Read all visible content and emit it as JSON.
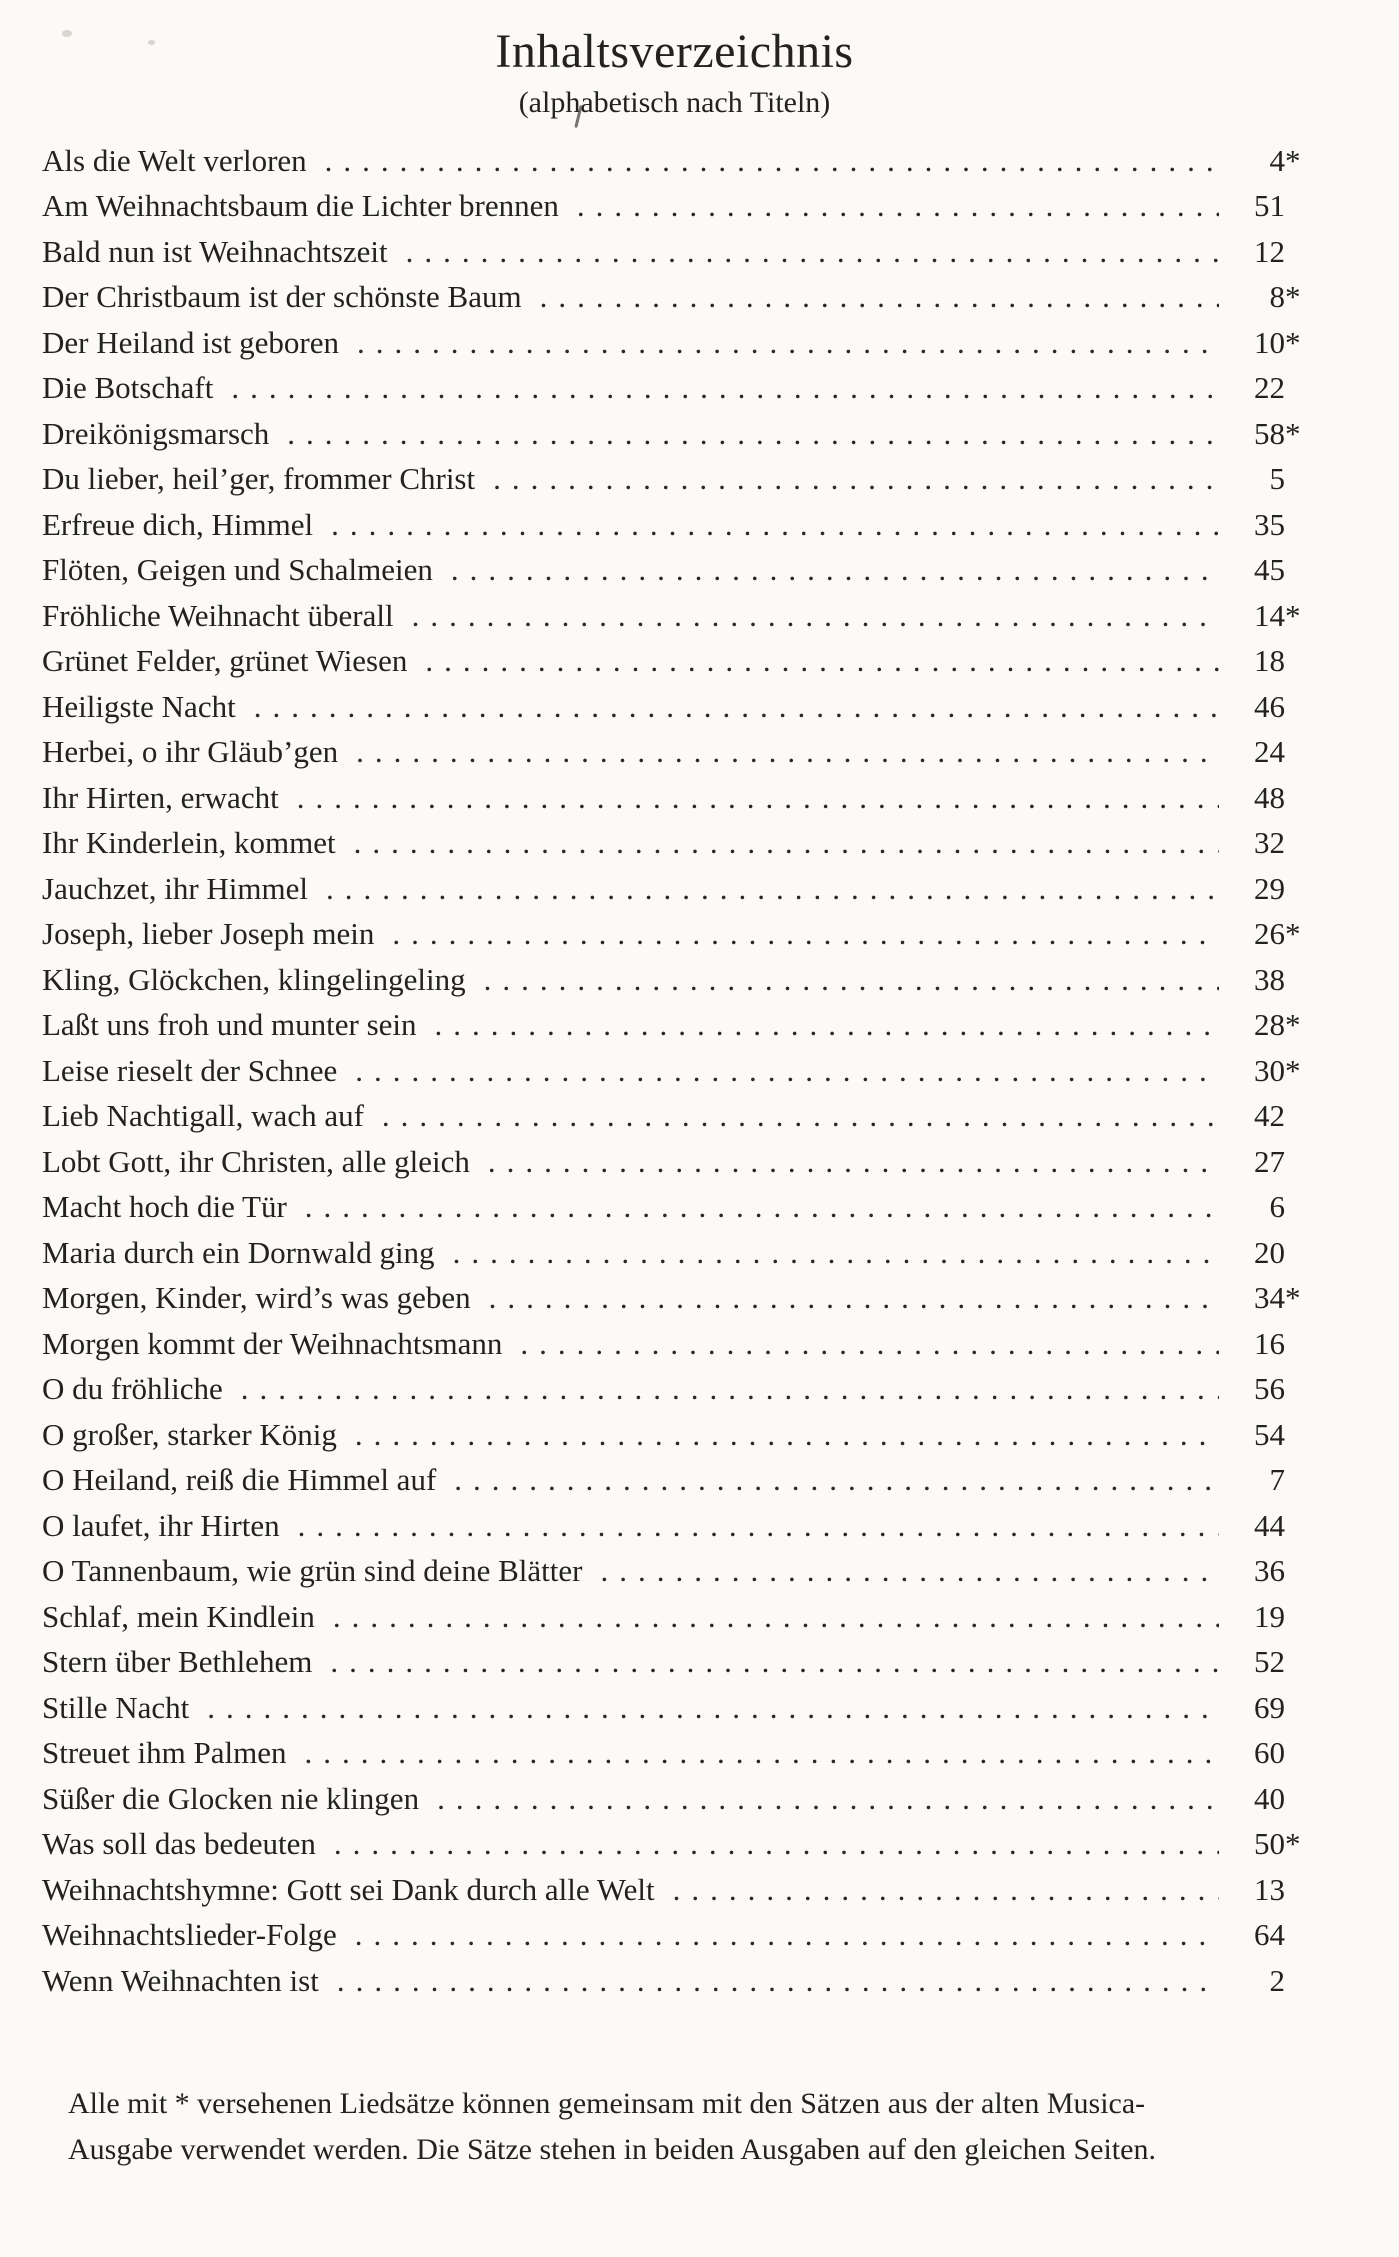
{
  "header": {
    "title": "Inhaltsverzeichnis",
    "subtitle": "(alphabetisch nach Titeln)"
  },
  "entries": [
    {
      "title": "Als die Welt verloren",
      "page": "4",
      "star": "*"
    },
    {
      "title": "Am Weihnachtsbaum die Lichter brennen",
      "page": "51",
      "star": ""
    },
    {
      "title": "Bald nun ist Weihnachtszeit",
      "page": "12",
      "star": ""
    },
    {
      "title": "Der Christbaum ist der schönste Baum",
      "page": "8",
      "star": "*"
    },
    {
      "title": "Der Heiland ist geboren",
      "page": "10",
      "star": "*"
    },
    {
      "title": "Die Botschaft",
      "page": "22",
      "star": ""
    },
    {
      "title": "Dreikönigsmarsch",
      "page": "58",
      "star": "*"
    },
    {
      "title": "Du lieber, heil’ger, frommer Christ",
      "page": "5",
      "star": ""
    },
    {
      "title": "Erfreue dich, Himmel",
      "page": "35",
      "star": ""
    },
    {
      "title": "Flöten, Geigen und Schalmeien",
      "page": "45",
      "star": ""
    },
    {
      "title": "Fröhliche Weihnacht überall",
      "page": "14",
      "star": "*"
    },
    {
      "title": "Grünet Felder, grünet Wiesen",
      "page": "18",
      "star": ""
    },
    {
      "title": "Heiligste Nacht",
      "page": "46",
      "star": ""
    },
    {
      "title": "Herbei, o ihr Gläub’gen",
      "page": "24",
      "star": ""
    },
    {
      "title": "Ihr Hirten, erwacht",
      "page": "48",
      "star": ""
    },
    {
      "title": "Ihr Kinderlein, kommet",
      "page": "32",
      "star": ""
    },
    {
      "title": "Jauchzet, ihr Himmel",
      "page": "29",
      "star": ""
    },
    {
      "title": "Joseph, lieber Joseph mein",
      "page": "26",
      "star": "*"
    },
    {
      "title": "Kling, Glöckchen, klingelingeling",
      "page": "38",
      "star": ""
    },
    {
      "title": "Laßt uns froh und munter sein",
      "page": "28",
      "star": "*"
    },
    {
      "title": "Leise rieselt der Schnee",
      "page": "30",
      "star": "*"
    },
    {
      "title": "Lieb Nachtigall, wach auf",
      "page": "42",
      "star": ""
    },
    {
      "title": "Lobt Gott, ihr Christen, alle gleich",
      "page": "27",
      "star": ""
    },
    {
      "title": "Macht hoch die Tür",
      "page": "6",
      "star": ""
    },
    {
      "title": "Maria durch ein Dornwald ging",
      "page": "20",
      "star": ""
    },
    {
      "title": "Morgen, Kinder, wird’s was geben",
      "page": "34",
      "star": "*"
    },
    {
      "title": "Morgen kommt der Weihnachtsmann",
      "page": "16",
      "star": ""
    },
    {
      "title": "O du fröhliche",
      "page": "56",
      "star": ""
    },
    {
      "title": "O großer, starker König",
      "page": "54",
      "star": ""
    },
    {
      "title": "O Heiland, reiß die Himmel auf",
      "page": "7",
      "star": ""
    },
    {
      "title": "O laufet, ihr Hirten",
      "page": "44",
      "star": ""
    },
    {
      "title": "O Tannenbaum, wie grün sind deine Blätter",
      "page": "36",
      "star": ""
    },
    {
      "title": "Schlaf, mein Kindlein",
      "page": "19",
      "star": ""
    },
    {
      "title": "Stern über Bethlehem",
      "page": "52",
      "star": ""
    },
    {
      "title": "Stille Nacht",
      "page": "69",
      "star": ""
    },
    {
      "title": "Streuet ihm Palmen",
      "page": "60",
      "star": ""
    },
    {
      "title": "Süßer die Glocken nie klingen",
      "page": "40",
      "star": ""
    },
    {
      "title": "Was soll das bedeuten",
      "page": "50",
      "star": "*"
    },
    {
      "title": "Weihnachtshymne: Gott sei Dank durch alle Welt",
      "page": "13",
      "star": ""
    },
    {
      "title": "Weihnachtslieder-Folge",
      "page": "64",
      "star": ""
    },
    {
      "title": "Wenn Weihnachten ist",
      "page": "2",
      "star": ""
    }
  ],
  "footnote": {
    "line1": "Alle mit * versehenen Liedsätze können gemeinsam mit den Sätzen aus der alten Musica-",
    "line2": "Ausgabe verwendet werden. Die Sätze stehen in beiden Ausgaben auf den gleichen Seiten."
  },
  "colors": {
    "background": "#fbfaf7",
    "text": "#232220"
  }
}
